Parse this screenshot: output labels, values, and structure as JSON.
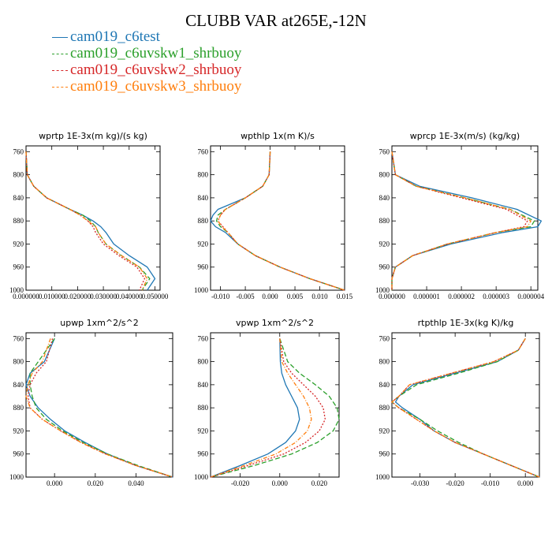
{
  "title": "CLUBB VAR at265E,-12N",
  "legend": [
    {
      "name": "cam019_c6test",
      "color": "#1f77b4",
      "dash": ""
    },
    {
      "name": "cam019_c6uvskw1_shrbuoy",
      "color": "#2ca02c",
      "dash": "6,3"
    },
    {
      "name": "cam019_c6uvskw2_shrbuoy",
      "color": "#d62728",
      "dash": "2,2"
    },
    {
      "name": "cam019_c6uvskw3_shrbuoy",
      "color": "#ff7f0e",
      "dash": "5,2,1,2"
    }
  ],
  "chart_data": [
    {
      "type": "line",
      "title": "wprtp  1E-3x(m kg)/(s kg)",
      "xlim": [
        0,
        0.052
      ],
      "ylim": [
        1000,
        750
      ],
      "xticks": [
        0.0,
        0.01,
        0.02,
        0.03,
        0.04,
        0.05
      ],
      "xticklabels": [
        "0.000000",
        "0.010000",
        "0.020000",
        "0.030000",
        "0.040000",
        "0.050000"
      ],
      "yticks": [
        760,
        800,
        840,
        880,
        920,
        960,
        1000
      ],
      "levels": [
        760,
        800,
        820,
        840,
        860,
        870,
        880,
        890,
        900,
        920,
        940,
        960,
        980,
        1000
      ],
      "series": [
        {
          "values": [
            0.0,
            0.0005,
            0.003,
            0.008,
            0.017,
            0.022,
            0.026,
            0.029,
            0.031,
            0.034,
            0.04,
            0.047,
            0.05,
            0.047
          ]
        },
        {
          "values": [
            0.0,
            0.0005,
            0.003,
            0.008,
            0.017,
            0.022,
            0.025,
            0.027,
            0.028,
            0.031,
            0.037,
            0.044,
            0.048,
            0.045
          ]
        },
        {
          "values": [
            0.0,
            0.0005,
            0.003,
            0.008,
            0.017,
            0.021,
            0.024,
            0.026,
            0.027,
            0.03,
            0.036,
            0.043,
            0.046,
            0.044
          ]
        },
        {
          "values": [
            0.0,
            0.0005,
            0.003,
            0.008,
            0.017,
            0.021,
            0.024,
            0.027,
            0.028,
            0.031,
            0.037,
            0.044,
            0.047,
            0.045
          ]
        }
      ]
    },
    {
      "type": "line",
      "title": "wpthlp  1x(m K)/s",
      "xlim": [
        -0.012,
        0.015
      ],
      "ylim": [
        1000,
        750
      ],
      "xticks": [
        -0.01,
        -0.005,
        0.0,
        0.005,
        0.01,
        0.015
      ],
      "xticklabels": [
        "-0.010",
        "-0.005",
        "0.000",
        "0.005",
        "0.010",
        "0.015"
      ],
      "yticks": [
        760,
        800,
        840,
        880,
        920,
        960,
        1000
      ],
      "levels": [
        760,
        800,
        820,
        840,
        860,
        870,
        880,
        890,
        900,
        920,
        940,
        960,
        980,
        1000
      ],
      "series": [
        {
          "values": [
            0.0,
            -0.0002,
            -0.0015,
            -0.005,
            -0.0105,
            -0.0115,
            -0.012,
            -0.011,
            -0.009,
            -0.0065,
            -0.003,
            0.002,
            0.008,
            0.015
          ]
        },
        {
          "values": [
            0.0,
            -0.0002,
            -0.0015,
            -0.005,
            -0.009,
            -0.0105,
            -0.0108,
            -0.01,
            -0.0085,
            -0.0065,
            -0.003,
            0.002,
            0.008,
            0.015
          ]
        },
        {
          "values": [
            0.0,
            -0.0002,
            -0.0015,
            -0.005,
            -0.009,
            -0.01,
            -0.0105,
            -0.0095,
            -0.0085,
            -0.0065,
            -0.003,
            0.002,
            0.008,
            0.015
          ]
        },
        {
          "values": [
            0.0,
            -0.0002,
            -0.0015,
            -0.005,
            -0.009,
            -0.01,
            -0.0105,
            -0.0097,
            -0.0085,
            -0.0065,
            -0.003,
            0.002,
            0.008,
            0.015
          ]
        }
      ]
    },
    {
      "type": "line",
      "title": "wprcp  1E-3x(m/s) (kg/kg)",
      "xlim": [
        0,
        4.2e-06
      ],
      "ylim": [
        1000,
        750
      ],
      "xticks": [
        0.0,
        1e-06,
        2e-06,
        3e-06,
        4e-06
      ],
      "xticklabels": [
        "0.000000",
        "0.000001",
        "0.000002",
        "0.000003",
        "0.000004"
      ],
      "yticks": [
        760,
        800,
        840,
        880,
        920,
        960,
        1000
      ],
      "levels": [
        760,
        800,
        820,
        840,
        860,
        880,
        890,
        900,
        920,
        940,
        960,
        980,
        1000
      ],
      "series": [
        {
          "values": [
            0.0,
            1e-07,
            8e-07,
            2.3e-06,
            3.6e-06,
            4.3e-06,
            4.2e-06,
            3.2e-06,
            1.7e-06,
            6e-07,
            1e-07,
            0.0,
            0.0
          ]
        },
        {
          "values": [
            0.0,
            1e-07,
            7e-07,
            2.1e-06,
            3.4e-06,
            4.1e-06,
            4e-06,
            3e-06,
            1.6e-06,
            6e-07,
            1e-07,
            0.0,
            0.0
          ]
        },
        {
          "values": [
            0.0,
            1e-07,
            7e-07,
            2e-06,
            3.3e-06,
            3.9e-06,
            3.8e-06,
            3e-06,
            1.6e-06,
            6e-07,
            1e-07,
            0.0,
            0.0
          ]
        },
        {
          "values": [
            0.0,
            1e-07,
            7e-07,
            2.1e-06,
            3.4e-06,
            4e-06,
            3.9e-06,
            3e-06,
            1.6e-06,
            6e-07,
            1e-07,
            0.0,
            0.0
          ]
        }
      ]
    },
    {
      "type": "line",
      "title": "upwp  1xm^2/s^2",
      "xlim": [
        -0.014,
        0.058
      ],
      "ylim": [
        1000,
        750
      ],
      "xticks": [
        0.0,
        0.02,
        0.04
      ],
      "xticklabels": [
        "0.000",
        "0.020",
        "0.040"
      ],
      "yticks": [
        760,
        800,
        840,
        880,
        920,
        960,
        1000
      ],
      "levels": [
        760,
        800,
        820,
        840,
        860,
        880,
        900,
        920,
        940,
        960,
        980,
        1000
      ],
      "series": [
        {
          "values": [
            0.0,
            -0.005,
            -0.012,
            -0.014,
            -0.012,
            -0.008,
            -0.002,
            0.005,
            0.015,
            0.026,
            0.04,
            0.058
          ]
        },
        {
          "values": [
            0.0,
            -0.008,
            -0.012,
            -0.012,
            -0.011,
            -0.009,
            -0.004,
            0.004,
            0.014,
            0.026,
            0.041,
            0.058
          ]
        },
        {
          "values": [
            -0.001,
            -0.004,
            -0.009,
            -0.012,
            -0.013,
            -0.012,
            -0.006,
            0.003,
            0.013,
            0.025,
            0.04,
            0.058
          ]
        },
        {
          "values": [
            -0.002,
            -0.006,
            -0.011,
            -0.013,
            -0.014,
            -0.012,
            -0.006,
            0.003,
            0.013,
            0.025,
            0.04,
            0.058
          ]
        }
      ]
    },
    {
      "type": "line",
      "title": "vpwp  1xm^2/s^2",
      "xlim": [
        -0.035,
        0.03
      ],
      "ylim": [
        1000,
        750
      ],
      "xticks": [
        -0.02,
        0.0,
        0.02
      ],
      "xticklabels": [
        "-0.020",
        "0.000",
        "0.020"
      ],
      "yticks": [
        760,
        800,
        840,
        880,
        920,
        960,
        1000
      ],
      "levels": [
        760,
        800,
        820,
        840,
        860,
        880,
        900,
        920,
        940,
        960,
        980,
        1000
      ],
      "series": [
        {
          "values": [
            0.0,
            0.0003,
            0.001,
            0.003,
            0.006,
            0.009,
            0.01,
            0.008,
            0.003,
            -0.006,
            -0.02,
            -0.035
          ]
        },
        {
          "values": [
            0.0,
            0.004,
            0.01,
            0.018,
            0.025,
            0.029,
            0.03,
            0.027,
            0.019,
            0.006,
            -0.013,
            -0.035
          ]
        },
        {
          "values": [
            0.0,
            0.002,
            0.006,
            0.012,
            0.018,
            0.022,
            0.023,
            0.02,
            0.013,
            0.002,
            -0.016,
            -0.035
          ]
        },
        {
          "values": [
            0.0,
            0.001,
            0.004,
            0.008,
            0.012,
            0.015,
            0.016,
            0.014,
            0.008,
            -0.002,
            -0.018,
            -0.035
          ]
        }
      ]
    },
    {
      "type": "line",
      "title": "rtpthlp  1E-3x(kg K)/kg",
      "xlim": [
        -0.038,
        0.004
      ],
      "ylim": [
        1000,
        750
      ],
      "xticks": [
        -0.03,
        -0.02,
        -0.01,
        0.0
      ],
      "xticklabels": [
        "-0.030",
        "-0.020",
        "-0.010",
        "0.000"
      ],
      "yticks": [
        760,
        800,
        840,
        880,
        920,
        960,
        1000
      ],
      "levels": [
        760,
        780,
        800,
        820,
        840,
        860,
        870,
        880,
        900,
        920,
        940,
        960,
        980,
        1000
      ],
      "series": [
        {
          "values": [
            0.0,
            -0.002,
            -0.008,
            -0.02,
            -0.032,
            -0.036,
            -0.037,
            -0.035,
            -0.03,
            -0.026,
            -0.02,
            -0.012,
            -0.004,
            0.004
          ]
        },
        {
          "values": [
            0.0,
            -0.002,
            -0.008,
            -0.019,
            -0.031,
            -0.036,
            -0.038,
            -0.036,
            -0.03,
            -0.025,
            -0.019,
            -0.012,
            -0.004,
            0.004
          ]
        },
        {
          "values": [
            0.0,
            -0.002,
            -0.009,
            -0.021,
            -0.033,
            -0.036,
            -0.038,
            -0.036,
            -0.031,
            -0.026,
            -0.02,
            -0.012,
            -0.004,
            0.004
          ]
        },
        {
          "values": [
            0.0,
            -0.002,
            -0.009,
            -0.021,
            -0.033,
            -0.036,
            -0.038,
            -0.036,
            -0.031,
            -0.026,
            -0.02,
            -0.012,
            -0.004,
            0.004
          ]
        }
      ]
    }
  ]
}
